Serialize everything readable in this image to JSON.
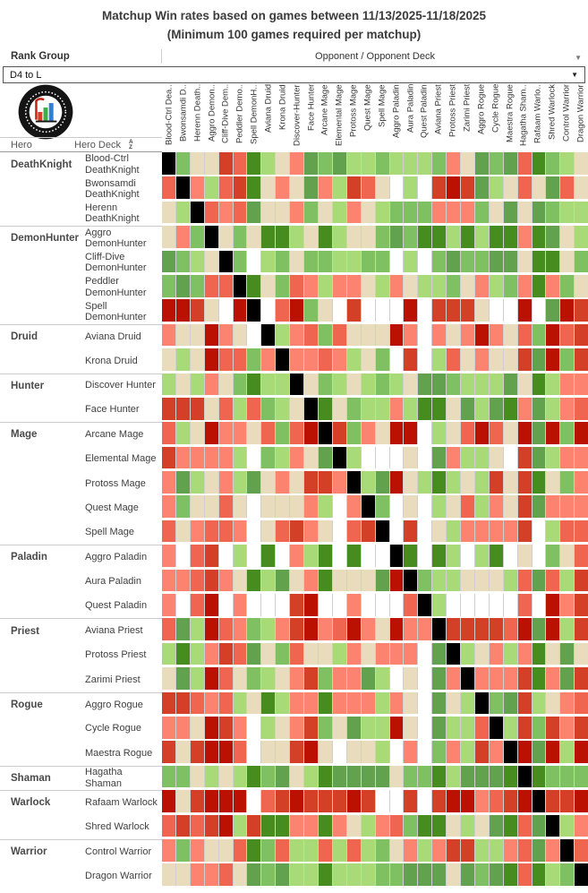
{
  "title": {
    "line1": "Matchup Win rates based on games between 11/13/2025-11/18/2025",
    "line2": "(Minimum 100 games required per matchup)"
  },
  "controls": {
    "rank_group_label": "Rank Group",
    "rank_group_value": "D4 to L",
    "opponent_header": "Opponent / Opponent Deck",
    "caret": "▼"
  },
  "corner": {
    "hero_label": "Hero",
    "hero_deck_label": "Hero Deck",
    "sort_icon_top": "A",
    "sort_icon_bottom": "Z",
    "logo_name": "Data Reaper Report"
  },
  "chart_data": {
    "type": "heatmap",
    "title": "Matchup Win rates based on games between 11/13/2025-11/18/2025 (Minimum 100 games required per matchup)",
    "x_axis": "Opponent / Opponent Deck",
    "y_axis": "Hero / Hero Deck",
    "rank_group": "D4 to L",
    "palette": {
      "K": "#000000",
      "W": "#ffffff",
      "D": "#bb1103",
      "R": "#d43f28",
      "t": "#ef6550",
      "r": "#fc8370",
      "b": "#e9dcbd",
      "l": "#a8da78",
      "g": "#7fc162",
      "m": "#62a24e",
      "G": "#478c1e"
    },
    "palette_key": "K=mirror(black) W=no-data(white) D=darkest-red R=red t=tomato r=salmon b=beige l=light-green g=yellow-green m=medium-green G=dark-green",
    "columns": [
      "Blood-Ctrl Dea..",
      "Bwonsamdi D..",
      "Herenn Death..",
      "Aggro Demon..",
      "Cliff-Dive Dem..",
      "Peddler Demo..",
      "Spell DemonH..",
      "Aviana Druid",
      "Krona Druid",
      "Discover-Hunter",
      "Face Hunter",
      "Arcane Mage",
      "Elemental Mage",
      "Protoss Mage",
      "Quest Mage",
      "Spell Mage",
      "Aggro Paladin",
      "Aura Paladin",
      "Quest Paladin",
      "Aviana Priest",
      "Protoss Priest",
      "Zarimi Priest",
      "Aggro Rogue",
      "Cycle Rogue",
      "Maestra Rogue",
      "Hagatha Sham..",
      "Rafaam Warlo..",
      "Shred Warlock",
      "Control Warrior",
      "Dragon Warrior"
    ],
    "rows": [
      {
        "group": "DeathKnight",
        "deck": "Blood-Ctrl DeathKnight",
        "cells": "KgbbRtGlbrmgmllglllgrbmgmtGglb"
      },
      {
        "group": "",
        "deck": "Bwonsamdi DeathKnight",
        "cells": "tKrltRGbrbmrlRtbWlWRDRmlbtbmtb"
      },
      {
        "group": "",
        "deck": "Herenn DeathKnight",
        "cells": "blKtrtmbbrgblrblgggrrrgbmbmgll"
      },
      {
        "group": "DemonHunter",
        "deck": "Aggro DemonHunter",
        "cells": "brgKbgbGGlbGlbbgmgGGlGlGGrGmbl"
      },
      {
        "group": "",
        "deck": "Cliff-Dive DemonHunter",
        "cells": "mglbKgWlgbggllggWlWgmggmmbGGbg"
      },
      {
        "group": "",
        "deck": "Peddler DemonHunter",
        "cells": "gmgttKGbgtrlrrblrbllgbrlgrGrgb"
      },
      {
        "group": "",
        "deck": "Spell DemonHunter",
        "cells": "DDRbWDKWtDgbWRWWWDWRRRbWWDWmDR"
      },
      {
        "group": "Druid",
        "deck": "Aviana Druid",
        "cells": "rbbDrbWKlrtgtbbbDrWrbrDrbtgDtR"
      },
      {
        "group": "",
        "deck": "Krona Druid",
        "cells": "blbDttgrKrrtrlbgWRWltbrbbRmDgR"
      },
      {
        "group": "Hunter",
        "deck": "Discover Hunter",
        "cells": "lblrbgGllKbglblglbmmglllmbGlrr"
      },
      {
        "group": "",
        "deck": "Face Hunter",
        "cells": "RRRbtltglbKGbgllrlGGbmlmGrmlrt"
      },
      {
        "group": "Mage",
        "deck": "Arcane Mage",
        "cells": "tlbDrrbtgtDKRgrbDDWlbtDtbDmDgD"
      },
      {
        "group": "",
        "deck": "Elemental Mage",
        "cells": "RrrrrlWglrbmKlWWWbWmrllbWRmlrr"
      },
      {
        "group": "",
        "deck": "Protoss Mage",
        "cells": "rmlbrlmbrbRRrKlmDblGlblRbRGbgr"
      },
      {
        "group": "",
        "deck": "Quest Mage",
        "cells": "rgbbtbWbbbrlWrKgWbWlbtlrbRmrrr"
      },
      {
        "group": "",
        "deck": "Spell Mage",
        "cells": "tbrttrWbtRrbWtRKWRWblrrrrRWltt"
      },
      {
        "group": "Paladin",
        "deck": "Aggro Paladin",
        "cells": "rWtRWlWGWrlGWGWWKGWGlWlGWbWgbt"
      },
      {
        "group": "",
        "deck": "Aura Paladin",
        "cells": "rrtRrbGlmbrGbbbmDKgllbbbltmtlR"
      },
      {
        "group": "",
        "deck": "Quest Paladin",
        "cells": "rWtDWrWWWRDWWrWWWtKlWWWWWtWDrR"
      },
      {
        "group": "Priest",
        "deck": "Aviana Priest",
        "cells": "tmlDtrglrRDrtDrbDrrKRRRRtDmDlR"
      },
      {
        "group": "",
        "deck": "Protoss Priest",
        "cells": "lGlrRtmbgtbblrbrrrWmKlbrlrGbmb"
      },
      {
        "group": "",
        "deck": "Zarimi Priest",
        "cells": "bmlDtbglbrRgrrmlWbWmrKrrrRGrmR"
      },
      {
        "group": "Rogue",
        "deck": "Aggro Rogue",
        "cells": "RRtrtlbGlrrGrrrlrbWmblKgmRlbrt"
      },
      {
        "group": "",
        "deck": "Cycle Rogue",
        "cells": "rrbDRrWlbrRgbmllDbWmlltKlRgRrR"
      },
      {
        "group": "",
        "deck": "Maestra Rogue",
        "cells": "RbRDDtWbbRDbWbblWrWgrlRrKDmDlD"
      },
      {
        "group": "Shaman",
        "deck": "Hagatha Shaman",
        "cells": "ggblblGgmblGmmmmbggGlmmmGKGggg"
      },
      {
        "group": "Warlock",
        "deck": "Rafaam Warlock",
        "cells": "DbRDDDWtRDRRRDRWWRWRDDrtRDKRRD"
      },
      {
        "group": "",
        "deck": "Shred Warlock",
        "cells": "tRtRDlRGGrrGrblrtgGGblbmGtmKlr"
      },
      {
        "group": "Warrior",
        "deck": "Control Warrior",
        "cells": "rgrbbtGgtlltltlgbrlrRRllrtmrKt"
      },
      {
        "group": "",
        "deck": "Dragon Warrior",
        "cells": "bbrrtbmgmllGlllggmmmbmgmGtGlgK"
      }
    ]
  }
}
